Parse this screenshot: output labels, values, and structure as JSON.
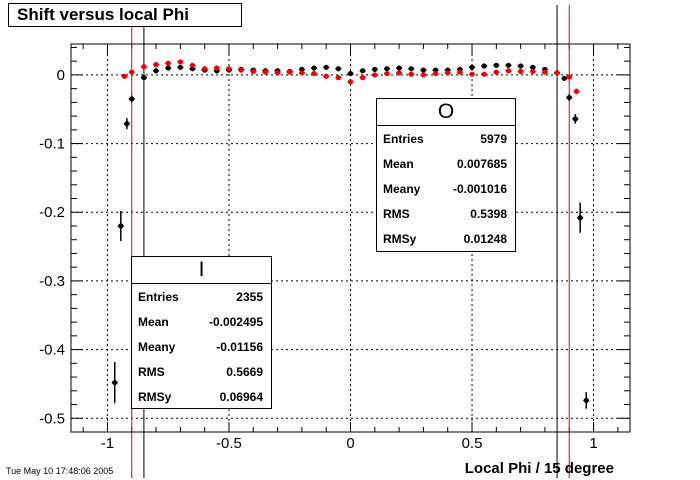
{
  "title": "Shift versus local Phi",
  "timestamp": "Tue May 10 17:48:06 2005",
  "chart_data": {
    "type": "scatter",
    "xlabel": "Local Phi / 15 degree",
    "ylabel": "",
    "xlim": [
      -1.15,
      1.15
    ],
    "ylim": [
      -0.52,
      0.045
    ],
    "grid": true,
    "xticks": [
      -1,
      -0.5,
      0,
      0.5,
      1
    ],
    "xtick_labels": [
      "-1",
      "-0.5",
      "0",
      "0.5",
      "1"
    ],
    "yticks": [
      0,
      -0.1,
      -0.2,
      -0.3,
      -0.4,
      -0.5
    ],
    "ytick_labels": [
      "0",
      "-0.1",
      "-0.2",
      "-0.3",
      "-0.4",
      "-0.5"
    ],
    "vlines": [
      {
        "x": -0.9,
        "color": "#dd0000"
      },
      {
        "x": -0.85,
        "color": "#000000"
      },
      {
        "x": 0.85,
        "color": "#000000"
      },
      {
        "x": 0.9,
        "color": "#dd0000"
      }
    ],
    "series": [
      {
        "name": "O",
        "color": "#000000",
        "x": [
          -0.97,
          -0.945,
          -0.92,
          -0.9,
          -0.85,
          -0.8,
          -0.75,
          -0.7,
          -0.65,
          -0.6,
          -0.55,
          -0.5,
          -0.45,
          -0.4,
          -0.35,
          -0.3,
          -0.25,
          -0.2,
          -0.15,
          -0.1,
          -0.05,
          0,
          0.05,
          0.1,
          0.15,
          0.2,
          0.25,
          0.3,
          0.35,
          0.4,
          0.45,
          0.5,
          0.55,
          0.6,
          0.65,
          0.7,
          0.75,
          0.8,
          0.85,
          0.88,
          0.9,
          0.925,
          0.945,
          0.97
        ],
        "y": [
          -0.448,
          -0.22,
          -0.071,
          -0.035,
          -0.004,
          0.006,
          0.01,
          0.011,
          0.009,
          0.007,
          0.006,
          0.007,
          0.008,
          0.007,
          0.006,
          0.006,
          0.005,
          0.008,
          0.01,
          0.011,
          0.009,
          0.002,
          0.006,
          0.008,
          0.009,
          0.01,
          0.009,
          0.007,
          0.007,
          0.007,
          0.008,
          0.011,
          0.013,
          0.014,
          0.014,
          0.013,
          0.011,
          0.008,
          0.003,
          -0.005,
          -0.033,
          -0.064,
          -0.208,
          -0.474
        ],
        "yerr": [
          0.03,
          0.022,
          0.008,
          0.005,
          0.003,
          0.003,
          0.003,
          0.003,
          0.003,
          0.003,
          0.003,
          0.003,
          0.003,
          0.003,
          0.003,
          0.003,
          0.003,
          0.003,
          0.003,
          0.003,
          0.003,
          0.003,
          0.003,
          0.003,
          0.003,
          0.003,
          0.003,
          0.003,
          0.003,
          0.003,
          0.003,
          0.003,
          0.003,
          0.003,
          0.003,
          0.003,
          0.003,
          0.003,
          0.003,
          0.003,
          0.005,
          0.007,
          0.022,
          0.012
        ]
      },
      {
        "name": "I",
        "color": "#ee0000",
        "x": [
          -0.93,
          -0.9,
          -0.85,
          -0.8,
          -0.75,
          -0.7,
          -0.65,
          -0.6,
          -0.55,
          -0.5,
          -0.45,
          -0.4,
          -0.35,
          -0.3,
          -0.25,
          -0.2,
          -0.15,
          -0.1,
          -0.05,
          0,
          0.05,
          0.1,
          0.15,
          0.2,
          0.25,
          0.3,
          0.35,
          0.4,
          0.45,
          0.5,
          0.55,
          0.6,
          0.65,
          0.7,
          0.75,
          0.8,
          0.85,
          0.9,
          0.93
        ],
        "y": [
          -0.002,
          0.004,
          0.012,
          0.015,
          0.017,
          0.019,
          0.014,
          0.009,
          0.01,
          0.009,
          0.007,
          0.005,
          0.004,
          0.003,
          0.004,
          0.003,
          0.002,
          -0.002,
          -0.004,
          -0.01,
          -0.004,
          0.0,
          0.002,
          0.003,
          0.001,
          0.0,
          0.002,
          0.003,
          0.004,
          0.001,
          0.001,
          0.004,
          0.006,
          0.005,
          0.005,
          0.004,
          0.003,
          -0.003,
          -0.024
        ],
        "yerr": [
          0.003,
          0.003,
          0.003,
          0.003,
          0.003,
          0.003,
          0.003,
          0.003,
          0.003,
          0.003,
          0.003,
          0.003,
          0.003,
          0.003,
          0.003,
          0.003,
          0.003,
          0.003,
          0.003,
          0.003,
          0.003,
          0.003,
          0.003,
          0.003,
          0.003,
          0.003,
          0.003,
          0.003,
          0.003,
          0.003,
          0.003,
          0.003,
          0.003,
          0.003,
          0.003,
          0.003,
          0.003,
          0.003,
          0.004
        ]
      }
    ]
  },
  "stats_o": {
    "name": "O",
    "rows": [
      {
        "label": "Entries",
        "value": "5979"
      },
      {
        "label": "Mean",
        "value": "0.007685"
      },
      {
        "label": "Meany",
        "value": "-0.001016"
      },
      {
        "label": "RMS",
        "value": "0.5398"
      },
      {
        "label": "RMSy",
        "value": "0.01248"
      }
    ]
  },
  "stats_i": {
    "name": "I",
    "rows": [
      {
        "label": "Entries",
        "value": "2355"
      },
      {
        "label": "Mean",
        "value": "-0.002495"
      },
      {
        "label": "Meany",
        "value": "-0.01156"
      },
      {
        "label": "RMS",
        "value": "0.5669"
      },
      {
        "label": "RMSy",
        "value": "0.06964"
      }
    ]
  }
}
